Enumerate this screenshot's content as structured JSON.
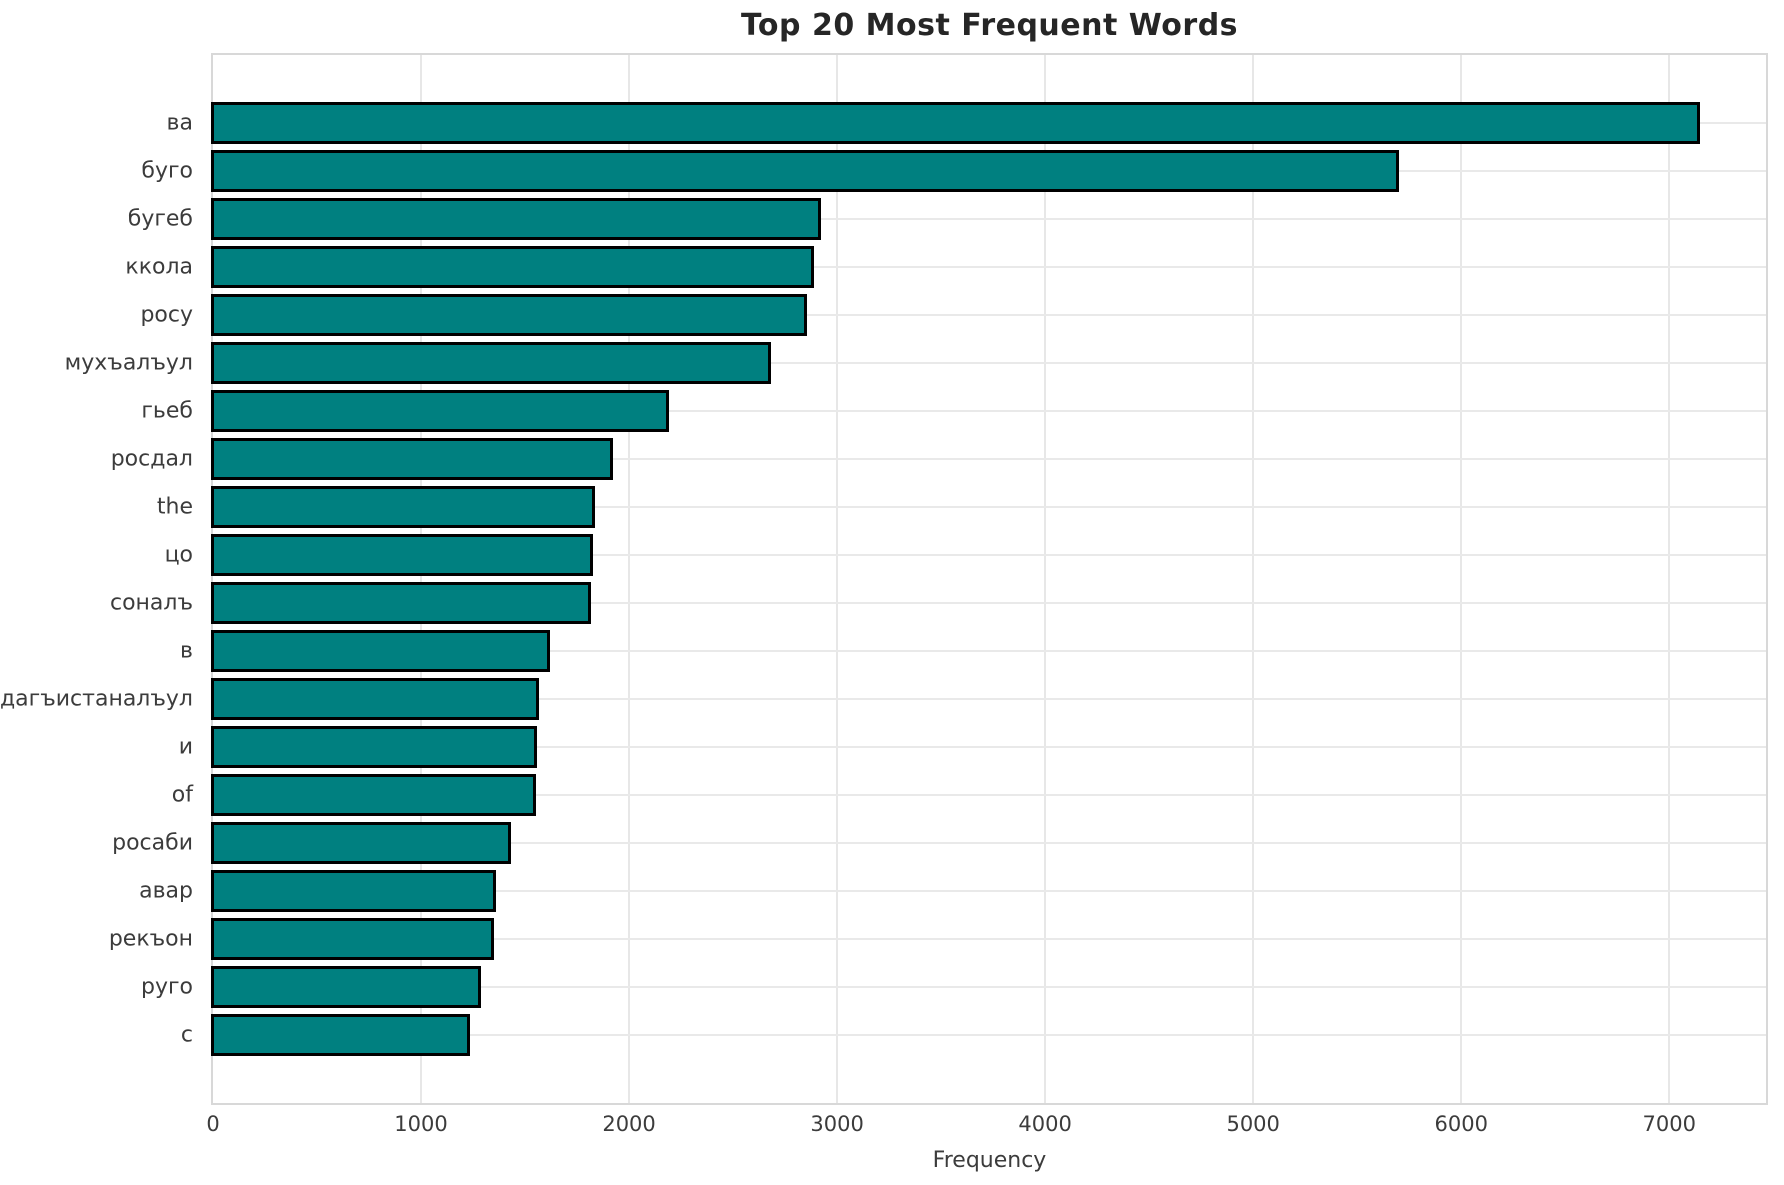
{
  "title": "Top 20 Most Frequent Words",
  "chart_data": {
    "type": "bar",
    "orientation": "horizontal",
    "title": "Top 20 Most Frequent Words",
    "xlabel": "Frequency",
    "ylabel": "",
    "categories": [
      "ва",
      "буго",
      "бугеб",
      "ккола",
      "росу",
      "мухъалъул",
      "гьеб",
      "росдал",
      "the",
      "цо",
      "соналъ",
      "в",
      "дагъистаналъул",
      "и",
      "of",
      "росаби",
      "авар",
      "рекъон",
      "руго",
      "с"
    ],
    "values": [
      7130,
      5680,
      2905,
      2870,
      2835,
      2665,
      2175,
      1905,
      1815,
      1805,
      1798,
      1600,
      1548,
      1540,
      1535,
      1415,
      1342,
      1330,
      1270,
      1215
    ],
    "x_ticks": [
      0,
      1000,
      2000,
      3000,
      4000,
      5000,
      6000,
      7000
    ],
    "xlim": [
      0,
      7465
    ],
    "grid": true,
    "legend": "none",
    "bar_color": "#008080",
    "bar_edge_color": "#000000",
    "grid_color": "#e7e7e7",
    "background_color": "#ffffff"
  }
}
